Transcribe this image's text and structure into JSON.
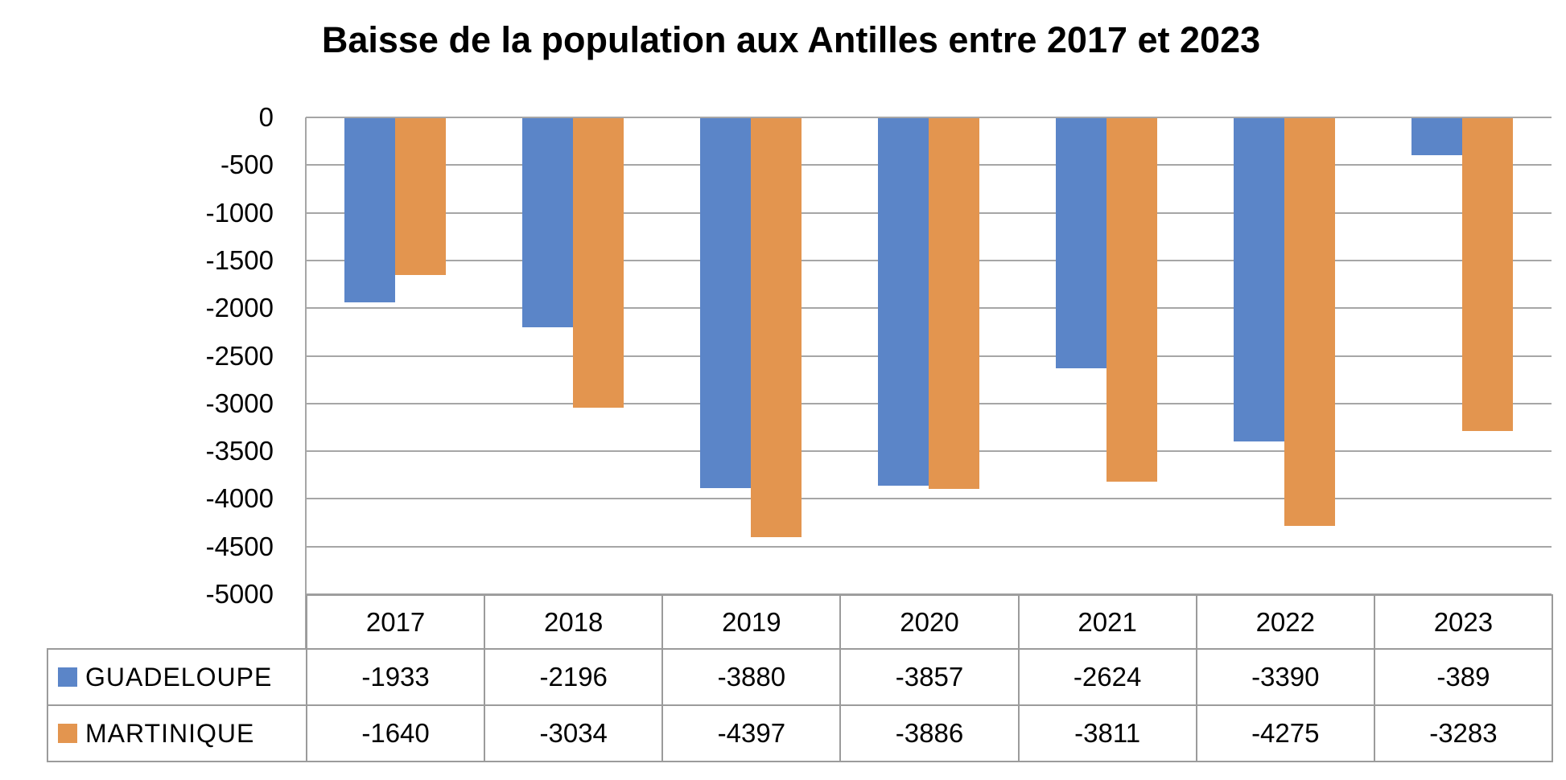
{
  "chart_data": {
    "type": "bar",
    "title": "Baisse de la population aux Antilles entre 2017 et 2023",
    "categories": [
      "2017",
      "2018",
      "2019",
      "2020",
      "2021",
      "2022",
      "2023"
    ],
    "series": [
      {
        "name": "GUADELOUPE",
        "color": "#5B85C8",
        "values": [
          -1933,
          -2196,
          -3880,
          -3857,
          -2624,
          -3390,
          -389
        ]
      },
      {
        "name": "MARTINIQUE",
        "color": "#E3954F",
        "values": [
          -1640,
          -3034,
          -4397,
          -3886,
          -3811,
          -4275,
          -3283
        ]
      }
    ],
    "xlabel": "",
    "ylabel": "",
    "ylim": [
      -5000,
      0
    ],
    "y_tick_step": 500,
    "y_ticks": [
      "0",
      "-500",
      "-1000",
      "-1500",
      "-2000",
      "-2500",
      "-3000",
      "-3500",
      "-4000",
      "-4500",
      "-5000"
    ],
    "grid": "horizontal",
    "legend_position": "data-table-left-column",
    "colors": {
      "gridline": "#A6A6A6",
      "table_border": "#9B9B9B",
      "text": "#000000",
      "background": "#FFFFFF"
    }
  }
}
